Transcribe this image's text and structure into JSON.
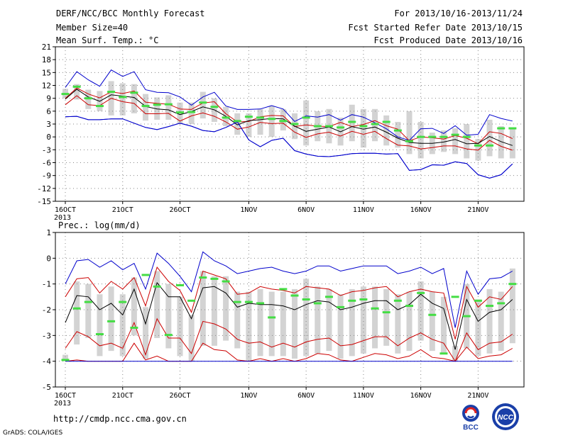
{
  "header": {
    "title": "DERF/NCC/BCC Monthly Forecast",
    "member_size": "Member Size=40",
    "variable": "Mean Surf. Temp.: °C",
    "forecast_for": "For 2013/10/16-2013/11/24",
    "started": "Fcst Started Refer Date 2013/10/15",
    "produced": "Fcst Produced Date 2013/10/16"
  },
  "footer": {
    "url": "http://cmdp.ncc.cma.gov.cn",
    "grads": "GrADS: COLA/IGES",
    "logo1_text": "BCC",
    "logo2_text": "NCC"
  },
  "colors": {
    "envelope": "#0000cc",
    "band": "#cc0000",
    "mean": "#000000",
    "median": "#44dd44",
    "box": "#d3d3d3",
    "grid": "#888888"
  },
  "chart_data": [
    {
      "type": "box",
      "ylabel": "",
      "ylim": [
        -15,
        21
      ],
      "yticks": [
        -15,
        -12,
        -9,
        -6,
        -3,
        0,
        3,
        6,
        9,
        12,
        15,
        18,
        21
      ],
      "xticks": [
        {
          "day": 1,
          "label": "16OCT",
          "sub": "2013"
        },
        {
          "day": 6,
          "label": "21OCT",
          "sub": ""
        },
        {
          "day": 11,
          "label": "26OCT",
          "sub": ""
        },
        {
          "day": 17,
          "label": "1NOV",
          "sub": ""
        },
        {
          "day": 22,
          "label": "6NOV",
          "sub": ""
        },
        {
          "day": 27,
          "label": "11NOV",
          "sub": ""
        },
        {
          "day": 32,
          "label": "16NOV",
          "sub": ""
        },
        {
          "day": 37,
          "label": "21NOV",
          "sub": ""
        }
      ],
      "grid": true,
      "x": [
        1,
        2,
        3,
        4,
        5,
        6,
        7,
        8,
        9,
        10,
        11,
        12,
        13,
        14,
        15,
        16,
        17,
        18,
        19,
        20,
        21,
        22,
        23,
        24,
        25,
        26,
        27,
        28,
        29,
        30,
        31,
        32,
        33,
        34,
        35,
        36,
        37,
        38,
        39,
        40
      ],
      "series": [
        {
          "key": "max",
          "values": [
            4.7,
            4.8,
            4.0,
            4.0,
            4.2,
            4.2,
            3.2,
            2.2,
            1.7,
            2.4,
            3.2,
            2.5,
            1.5,
            1.2,
            2.2,
            3.5,
            -0.7,
            -2.3,
            -0.8,
            -0.3,
            -3.2,
            -4.0,
            -4.5,
            -4.6,
            -4.3,
            -3.9,
            -3.8,
            -3.8,
            -4.0,
            -3.9,
            -7.8,
            -7.6,
            -6.5,
            -6.6,
            -5.8,
            -6.2,
            -8.8,
            -9.6,
            -8.8,
            -6.3
          ]
        },
        {
          "key": "p90",
          "values": [
            11.5,
            15.2,
            13.3,
            11.8,
            15.6,
            14.1,
            15.2,
            11.0,
            10.4,
            10.3,
            9.3,
            7.4,
            9.3,
            10.4,
            7.2,
            6.4,
            6.4,
            6.5,
            7.3,
            6.5,
            3.6,
            4.9,
            4.6,
            5.2,
            3.9,
            5.2,
            4.6,
            3.3,
            1.9,
            0.0,
            -0.8,
            1.9,
            2.0,
            0.8,
            2.6,
            0.4,
            0.6,
            5.2,
            4.3,
            3.7
          ]
        },
        {
          "key": "upper",
          "values": [
            9.0,
            11.4,
            10.0,
            9.1,
            10.5,
            10.1,
            10.7,
            8.1,
            7.8,
            7.6,
            6.5,
            6.4,
            7.9,
            8.2,
            5.4,
            3.5,
            3.6,
            4.7,
            5.0,
            4.9,
            2.4,
            2.8,
            2.5,
            2.4,
            3.4,
            2.4,
            2.9,
            3.8,
            2.6,
            1.8,
            -0.9,
            0.0,
            -0.2,
            -0.5,
            0.3,
            -0.3,
            -1.6,
            1.2,
            0.8,
            -0.4
          ]
        },
        {
          "key": "mean",
          "values": [
            8.8,
            11.1,
            9.3,
            8.3,
            9.8,
            9.5,
            9.2,
            7.1,
            6.5,
            6.3,
            5.2,
            5.9,
            7.0,
            6.3,
            4.8,
            2.8,
            3.8,
            4.0,
            4.3,
            4.2,
            2.5,
            1.3,
            1.8,
            2.3,
            1.2,
            2.4,
            1.8,
            2.3,
            1.1,
            -0.3,
            -1.3,
            -1.5,
            -1.5,
            -1.2,
            -0.6,
            -1.6,
            -1.5,
            0.1,
            -1.1,
            -2.0
          ]
        },
        {
          "key": "lower",
          "values": [
            7.5,
            9.6,
            7.5,
            7.3,
            9.0,
            8.2,
            7.8,
            5.4,
            5.4,
            5.5,
            3.7,
            4.9,
            5.6,
            4.8,
            3.5,
            1.8,
            2.3,
            3.4,
            3.1,
            3.2,
            1.1,
            -0.1,
            0.7,
            1.1,
            0.2,
            1.3,
            0.6,
            1.3,
            -0.4,
            -1.9,
            -2.1,
            -2.8,
            -2.5,
            -2.1,
            -2.1,
            -2.8,
            -3.1,
            -0.8,
            -2.2,
            -3.1
          ]
        },
        {
          "key": "min",
          "values": [
            4.7,
            4.8,
            4.0,
            4.0,
            4.2,
            4.2,
            3.2,
            2.2,
            1.7,
            2.4,
            3.2,
            2.5,
            1.5,
            1.2,
            2.2,
            3.5,
            -0.7,
            -2.3,
            -0.8,
            -0.3,
            -3.2,
            -4.0,
            -4.5,
            -4.6,
            -4.3,
            -3.9,
            -3.8,
            -3.8,
            -4.0,
            -3.9,
            -7.8,
            -7.6,
            -6.5,
            -6.6,
            -5.8,
            -6.2,
            -8.8,
            -9.6,
            -8.8,
            -6.3
          ]
        }
      ],
      "boxes": [
        {
          "lo": 9.0,
          "hi": 11.2
        },
        {
          "lo": 8.7,
          "hi": 12.3
        },
        {
          "lo": 6.5,
          "hi": 11.0
        },
        {
          "lo": 6.0,
          "hi": 10.7
        },
        {
          "lo": 5.0,
          "hi": 13.0
        },
        {
          "lo": 5.0,
          "hi": 12.5
        },
        {
          "lo": 5.5,
          "hi": 12.3
        },
        {
          "lo": 3.8,
          "hi": 10.0
        },
        {
          "lo": 4.0,
          "hi": 9.2
        },
        {
          "lo": 4.0,
          "hi": 9.7
        },
        {
          "lo": 3.0,
          "hi": 8.0
        },
        {
          "lo": 3.0,
          "hi": 8.0
        },
        {
          "lo": 4.3,
          "hi": 10.5
        },
        {
          "lo": 3.5,
          "hi": 9.0
        },
        {
          "lo": 2.5,
          "hi": 7.0
        },
        {
          "lo": 0.5,
          "hi": 5.5
        },
        {
          "lo": 0.0,
          "hi": 5.5
        },
        {
          "lo": 0.5,
          "hi": 6.5
        },
        {
          "lo": 0.0,
          "hi": 7.2
        },
        {
          "lo": 1.5,
          "hi": 6.5
        },
        {
          "lo": -0.5,
          "hi": 5.5
        },
        {
          "lo": -2.0,
          "hi": 8.5
        },
        {
          "lo": -1.0,
          "hi": 6.0
        },
        {
          "lo": -1.5,
          "hi": 6.5
        },
        {
          "lo": -2.0,
          "hi": 4.5
        },
        {
          "lo": -1.0,
          "hi": 7.5
        },
        {
          "lo": -2.5,
          "hi": 6.5
        },
        {
          "lo": -1.0,
          "hi": 6.5
        },
        {
          "lo": -2.0,
          "hi": 5.0
        },
        {
          "lo": -2.5,
          "hi": 3.5
        },
        {
          "lo": -4.0,
          "hi": 6.0
        },
        {
          "lo": -5.0,
          "hi": 3.5
        },
        {
          "lo": -4.0,
          "hi": 1.0
        },
        {
          "lo": -3.5,
          "hi": 1.5
        },
        {
          "lo": -4.0,
          "hi": 2.0
        },
        {
          "lo": -5.0,
          "hi": 3.0
        },
        {
          "lo": -5.5,
          "hi": -0.5
        },
        {
          "lo": -4.5,
          "hi": 4.0
        },
        {
          "lo": -5.0,
          "hi": 2.5
        },
        {
          "lo": -5.0,
          "hi": 2.0
        }
      ],
      "median": [
        10.0,
        11.7,
        9.0,
        7.2,
        10.5,
        9.3,
        10.3,
        7.2,
        7.5,
        7.6,
        5.7,
        5.8,
        8.0,
        7.0,
        4.5,
        3.7,
        4.7,
        4.5,
        4.2,
        3.7,
        3.0,
        4.5,
        2.5,
        2.5,
        2.2,
        3.5,
        2.5,
        3.0,
        3.5,
        1.5,
        -1.0,
        0.0,
        0.0,
        0.0,
        0.5,
        0.0,
        -2.0,
        -2.0,
        2.0,
        2.0
      ]
    },
    {
      "type": "box",
      "ylabel": "Prec.: log(mm/d)",
      "ylim": [
        -5,
        1
      ],
      "yticks": [
        -5,
        -4,
        -3,
        -2,
        -1,
        0,
        1
      ],
      "xticks": [
        {
          "day": 1,
          "label": "16OCT",
          "sub": "2013"
        },
        {
          "day": 6,
          "label": "21OCT",
          "sub": ""
        },
        {
          "day": 11,
          "label": "26OCT",
          "sub": ""
        },
        {
          "day": 17,
          "label": "1NOV",
          "sub": ""
        },
        {
          "day": 22,
          "label": "6NOV",
          "sub": ""
        },
        {
          "day": 27,
          "label": "11NOV",
          "sub": ""
        },
        {
          "day": 32,
          "label": "16NOV",
          "sub": ""
        },
        {
          "day": 37,
          "label": "21NOV",
          "sub": ""
        }
      ],
      "grid": true,
      "x": [
        1,
        2,
        3,
        4,
        5,
        6,
        7,
        8,
        9,
        10,
        11,
        12,
        13,
        14,
        15,
        16,
        17,
        18,
        19,
        20,
        21,
        22,
        23,
        24,
        25,
        26,
        27,
        28,
        29,
        30,
        31,
        32,
        33,
        34,
        35,
        36,
        37,
        38,
        39,
        40
      ],
      "series": [
        {
          "key": "max",
          "values": [
            -1.0,
            -0.1,
            -0.05,
            -0.35,
            -0.1,
            -0.45,
            -0.2,
            -1.2,
            0.2,
            -0.2,
            -0.7,
            -1.3,
            0.25,
            -0.1,
            -0.3,
            -0.6,
            -0.5,
            -0.4,
            -0.35,
            -0.5,
            -0.6,
            -0.5,
            -0.3,
            -0.3,
            -0.5,
            -0.4,
            -0.3,
            -0.3,
            -0.3,
            -0.6,
            -0.5,
            -0.35,
            -0.6,
            -0.4,
            -2.7,
            -0.5,
            -1.4,
            -0.8,
            -0.75,
            -0.5
          ]
        },
        {
          "key": "upper",
          "values": [
            -1.5,
            -0.8,
            -0.75,
            -1.35,
            -0.9,
            -1.2,
            -0.75,
            -1.85,
            -0.35,
            -0.9,
            -1.25,
            -2.1,
            -0.5,
            -0.65,
            -0.8,
            -1.4,
            -1.35,
            -1.1,
            -1.2,
            -1.25,
            -1.35,
            -1.1,
            -1.15,
            -1.2,
            -1.45,
            -1.3,
            -1.25,
            -1.15,
            -1.1,
            -1.5,
            -1.3,
            -1.2,
            -1.3,
            -1.35,
            -3.15,
            -1.1,
            -1.9,
            -1.5,
            -1.6,
            -1.1
          ]
        },
        {
          "key": "mean",
          "values": [
            -2.5,
            -1.45,
            -1.5,
            -2.0,
            -1.75,
            -2.2,
            -1.2,
            -2.55,
            -0.95,
            -1.5,
            -1.5,
            -2.35,
            -1.15,
            -1.1,
            -1.35,
            -1.9,
            -1.75,
            -1.8,
            -1.8,
            -1.85,
            -2.0,
            -1.8,
            -1.65,
            -1.7,
            -2.0,
            -1.9,
            -1.75,
            -1.65,
            -1.65,
            -2.0,
            -1.8,
            -1.4,
            -1.75,
            -1.95,
            -3.55,
            -1.6,
            -2.45,
            -2.1,
            -2.0,
            -1.6
          ]
        },
        {
          "key": "lower",
          "values": [
            -3.5,
            -2.85,
            -3.05,
            -3.4,
            -3.3,
            -3.5,
            -2.5,
            -3.75,
            -2.35,
            -3.1,
            -3.1,
            -3.7,
            -2.45,
            -2.55,
            -2.75,
            -3.15,
            -3.3,
            -3.25,
            -3.45,
            -3.3,
            -3.45,
            -3.25,
            -3.15,
            -3.1,
            -3.4,
            -3.35,
            -3.2,
            -3.05,
            -3.05,
            -3.4,
            -3.1,
            -2.9,
            -3.15,
            -3.3,
            -4.0,
            -2.9,
            -3.55,
            -3.3,
            -3.25,
            -2.95
          ]
        },
        {
          "key": "p10",
          "values": [
            -4.0,
            -3.95,
            -4.0,
            -4.0,
            -4.0,
            -4.0,
            -3.3,
            -3.95,
            -3.8,
            -4.0,
            -4.0,
            -4.0,
            -3.3,
            -3.55,
            -3.6,
            -3.95,
            -4.0,
            -3.9,
            -4.0,
            -3.9,
            -4.0,
            -3.9,
            -3.7,
            -3.75,
            -3.95,
            -4.0,
            -3.85,
            -3.7,
            -3.75,
            -3.9,
            -3.8,
            -3.55,
            -3.85,
            -3.9,
            -4.0,
            -3.45,
            -3.9,
            -3.8,
            -3.75,
            -3.5
          ]
        },
        {
          "key": "min",
          "values": [
            -4.0,
            -4.0,
            -4.0,
            -4.0,
            -4.0,
            -4.0,
            -4.0,
            -4.0,
            -4.0,
            -4.0,
            -4.0,
            -4.0,
            -4.0,
            -4.0,
            -4.0,
            -4.0,
            -4.0,
            -4.0,
            -4.0,
            -4.0,
            -4.0,
            -4.0,
            -4.0,
            -4.0,
            -4.0,
            -4.0,
            -4.0,
            -4.0,
            -4.0,
            -4.0,
            -4.0,
            -4.0,
            -4.0,
            -4.0,
            -4.0,
            -4.0,
            -4.0,
            -4.0,
            -4.0,
            -4.0
          ]
        }
      ],
      "boxes": [
        {
          "lo": -4.0,
          "hi": -3.75
        },
        {
          "lo": -3.35,
          "hi": -0.9
        },
        {
          "lo": -3.1,
          "hi": -1.0
        },
        {
          "lo": -3.8,
          "hi": -1.4
        },
        {
          "lo": -3.6,
          "hi": -1.1
        },
        {
          "lo": -3.8,
          "hi": -1.4
        },
        {
          "lo": -3.0,
          "hi": -0.75
        },
        {
          "lo": -3.9,
          "hi": -1.9
        },
        {
          "lo": -3.1,
          "hi": -0.5
        },
        {
          "lo": -3.5,
          "hi": -1.0
        },
        {
          "lo": -3.8,
          "hi": -1.5
        },
        {
          "lo": -4.0,
          "hi": -2.2
        },
        {
          "lo": -3.4,
          "hi": -0.5
        },
        {
          "lo": -3.4,
          "hi": -0.7
        },
        {
          "lo": -3.2,
          "hi": -0.7
        },
        {
          "lo": -3.5,
          "hi": -1.3
        },
        {
          "lo": -4.0,
          "hi": -1.3
        },
        {
          "lo": -3.8,
          "hi": -1.2
        },
        {
          "lo": -3.8,
          "hi": -1.3
        },
        {
          "lo": -3.8,
          "hi": -1.3
        },
        {
          "lo": -3.9,
          "hi": -1.2
        },
        {
          "lo": -3.8,
          "hi": -0.8
        },
        {
          "lo": -3.7,
          "hi": -1.1
        },
        {
          "lo": -3.6,
          "hi": -1.2
        },
        {
          "lo": -3.9,
          "hi": -1.4
        },
        {
          "lo": -3.8,
          "hi": -1.2
        },
        {
          "lo": -3.7,
          "hi": -1.1
        },
        {
          "lo": -3.5,
          "hi": -1.1
        },
        {
          "lo": -3.4,
          "hi": -1.2
        },
        {
          "lo": -3.7,
          "hi": -1.4
        },
        {
          "lo": -3.6,
          "hi": -1.3
        },
        {
          "lo": -3.2,
          "hi": -0.9
        },
        {
          "lo": -3.6,
          "hi": -1.3
        },
        {
          "lo": -3.7,
          "hi": -1.5
        },
        {
          "lo": -4.0,
          "hi": -3.4
        },
        {
          "lo": -3.5,
          "hi": -1.0
        },
        {
          "lo": -3.8,
          "hi": -1.6
        },
        {
          "lo": -3.7,
          "hi": -1.2
        },
        {
          "lo": -3.6,
          "hi": -1.3
        },
        {
          "lo": -3.3,
          "hi": -0.4
        }
      ],
      "median": [
        -3.95,
        -1.95,
        -1.7,
        -2.95,
        -2.45,
        -1.7,
        -2.7,
        -0.65,
        -1.1,
        -2.98,
        -1.05,
        -1.65,
        -0.75,
        -0.8,
        -0.9,
        -1.7,
        -1.7,
        -1.75,
        -2.3,
        -1.2,
        -1.45,
        -1.6,
        -1.75,
        -1.5,
        -1.9,
        -1.65,
        -1.6,
        -1.95,
        -2.1,
        -1.65,
        -1.85,
        -1.35,
        -2.2,
        -3.7,
        -1.5,
        -2.25,
        -1.65,
        -1.85,
        -1.75,
        -1.0
      ]
    }
  ]
}
